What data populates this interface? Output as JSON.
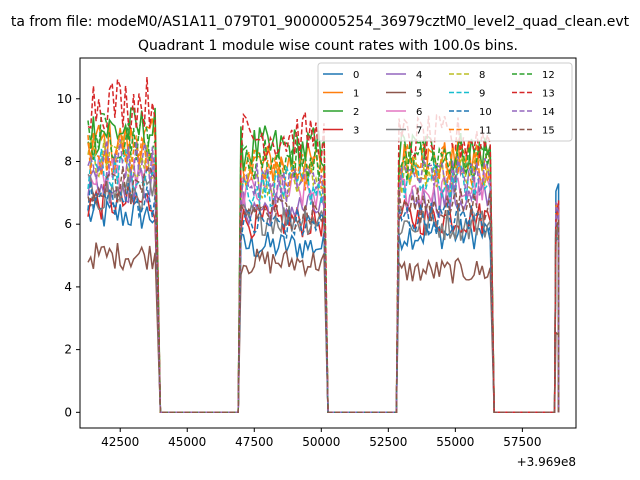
{
  "figure": {
    "suptitle": "ta from file: modeM0/AS1A11_079T01_9000005254_36979cztM0_level2_quad_clean.evt"
  },
  "chart_data": {
    "type": "line",
    "title": "Quadrant 1 module wise count rates with 100.0s bins.",
    "xlabel": "",
    "ylabel": "",
    "x_offset_label": "+3.969e8",
    "xlim": [
      41000,
      59500
    ],
    "ylim": [
      -0.5,
      11.3
    ],
    "xticks": [
      42500,
      45000,
      47500,
      50000,
      52500,
      55000,
      57500
    ],
    "xtick_labels": [
      "42500",
      "45000",
      "47500",
      "50000",
      "52500",
      "55000",
      "57500"
    ],
    "yticks": [
      0,
      2,
      4,
      6,
      8,
      10
    ],
    "ytick_labels": [
      "0",
      "2",
      "4",
      "6",
      "8",
      "10"
    ],
    "grid": false,
    "legend_position": "top-right",
    "legend_columns": 4,
    "segments": [
      {
        "start": 41300,
        "end": 43800,
        "fall_end": 44000
      },
      {
        "start": 47000,
        "rise_start": 46900,
        "end": 50100,
        "fall_end": 50250
      },
      {
        "start": 52900,
        "rise_start": 52800,
        "end": 56300,
        "fall_end": 56450
      },
      {
        "start": 58750,
        "rise_start": 58700,
        "end": 58850,
        "fall_end": 58850
      }
    ],
    "bin_seconds": 100,
    "series": [
      {
        "name": "0",
        "color": "#1f77b4",
        "dashed": false,
        "levels": [
          6.3,
          5.3,
          5.7,
          6.7
        ]
      },
      {
        "name": "1",
        "color": "#ff7f0e",
        "dashed": false,
        "levels": [
          8.6,
          7.9,
          8.0,
          6.3
        ]
      },
      {
        "name": "2",
        "color": "#2ca02c",
        "dashed": false,
        "levels": [
          9.0,
          8.4,
          8.3,
          6.5
        ]
      },
      {
        "name": "3",
        "color": "#d62728",
        "dashed": false,
        "levels": [
          6.7,
          6.1,
          6.2,
          6.0
        ]
      },
      {
        "name": "4",
        "color": "#9467bd",
        "dashed": false,
        "levels": [
          7.3,
          6.5,
          6.8,
          6.5
        ]
      },
      {
        "name": "5",
        "color": "#8c564b",
        "dashed": false,
        "levels": [
          5.0,
          4.8,
          4.5,
          2.5
        ]
      },
      {
        "name": "6",
        "color": "#e377c2",
        "dashed": false,
        "levels": [
          7.6,
          7.0,
          7.1,
          6.2
        ]
      },
      {
        "name": "7",
        "color": "#7f7f7f",
        "dashed": false,
        "levels": [
          7.0,
          6.2,
          6.0,
          6.0
        ]
      },
      {
        "name": "8",
        "color": "#bcbd22",
        "dashed": true,
        "levels": [
          8.2,
          7.4,
          7.6,
          6.1
        ]
      },
      {
        "name": "9",
        "color": "#17becf",
        "dashed": true,
        "levels": [
          7.8,
          7.2,
          7.3,
          6.0
        ]
      },
      {
        "name": "10",
        "color": "#1f77b4",
        "dashed": true,
        "levels": [
          6.8,
          6.0,
          6.2,
          6.3
        ]
      },
      {
        "name": "11",
        "color": "#ff7f0e",
        "dashed": true,
        "levels": [
          8.3,
          7.7,
          7.9,
          6.2
        ]
      },
      {
        "name": "12",
        "color": "#2ca02c",
        "dashed": true,
        "levels": [
          8.8,
          8.1,
          8.0,
          6.4
        ]
      },
      {
        "name": "13",
        "color": "#d62728",
        "dashed": true,
        "levels": [
          9.9,
          8.8,
          8.7,
          6.6
        ]
      },
      {
        "name": "14",
        "color": "#9467bd",
        "dashed": true,
        "levels": [
          8.0,
          7.3,
          7.5,
          6.4
        ]
      },
      {
        "name": "15",
        "color": "#8c564b",
        "dashed": true,
        "levels": [
          7.2,
          6.4,
          6.6,
          6.2
        ]
      }
    ]
  }
}
